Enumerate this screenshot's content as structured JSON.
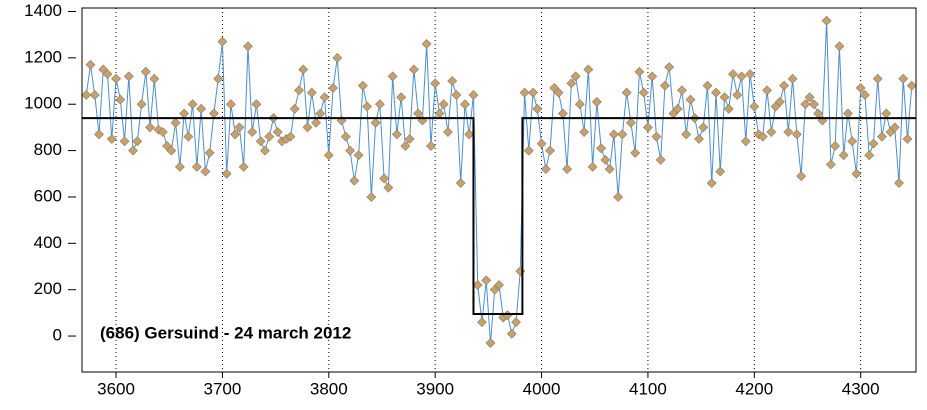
{
  "chart_data": {
    "type": "line",
    "annotation": "(686) Gersuind - 24 march 2012",
    "xlim": [
      3568,
      4352
    ],
    "ylim": [
      -155,
      1415
    ],
    "xticks": [
      3600,
      3700,
      3800,
      3900,
      4000,
      4100,
      4200,
      4300
    ],
    "yticks": [
      0,
      200,
      400,
      600,
      800,
      1000,
      1200,
      1400
    ],
    "grid": true,
    "series": [
      {
        "color": "#4a8fd0",
        "marker_color": "#c8a06a",
        "x": [
          3572,
          3576,
          3580,
          3584,
          3588,
          3592,
          3596,
          3600,
          3604,
          3608,
          3612,
          3616,
          3620,
          3624,
          3628,
          3632,
          3636,
          3640,
          3644,
          3648,
          3652,
          3656,
          3660,
          3664,
          3668,
          3672,
          3676,
          3680,
          3684,
          3688,
          3692,
          3696,
          3700,
          3704,
          3708,
          3712,
          3716,
          3720,
          3724,
          3728,
          3732,
          3736,
          3740,
          3744,
          3748,
          3752,
          3756,
          3760,
          3764,
          3768,
          3772,
          3776,
          3780,
          3784,
          3788,
          3792,
          3796,
          3800,
          3804,
          3808,
          3812,
          3816,
          3820,
          3824,
          3828,
          3832,
          3836,
          3840,
          3844,
          3848,
          3852,
          3856,
          3860,
          3864,
          3868,
          3872,
          3876,
          3880,
          3884,
          3888,
          3892,
          3896,
          3900,
          3904,
          3908,
          3912,
          3916,
          3920,
          3924,
          3928,
          3932,
          3936,
          3940,
          3944,
          3948,
          3952,
          3956,
          3960,
          3964,
          3968,
          3972,
          3976,
          3980,
          3984,
          3988,
          3992,
          3996,
          4000,
          4004,
          4008,
          4012,
          4016,
          4020,
          4024,
          4028,
          4032,
          4036,
          4040,
          4044,
          4048,
          4052,
          4056,
          4060,
          4064,
          4068,
          4072,
          4076,
          4080,
          4084,
          4088,
          4092,
          4096,
          4100,
          4104,
          4108,
          4112,
          4116,
          4120,
          4124,
          4128,
          4132,
          4136,
          4140,
          4144,
          4148,
          4152,
          4156,
          4160,
          4164,
          4168,
          4172,
          4176,
          4180,
          4184,
          4188,
          4192,
          4196,
          4200,
          4204,
          4208,
          4212,
          4216,
          4220,
          4224,
          4228,
          4232,
          4236,
          4240,
          4244,
          4248,
          4252,
          4256,
          4260,
          4264,
          4268,
          4272,
          4276,
          4280,
          4284,
          4288,
          4292,
          4296,
          4300,
          4304,
          4308,
          4312,
          4316,
          4320,
          4324,
          4328,
          4332,
          4336,
          4340,
          4344,
          4348
        ],
        "values": [
          1040,
          1170,
          1040,
          870,
          1150,
          1130,
          850,
          1110,
          1020,
          840,
          1120,
          800,
          840,
          1000,
          1140,
          900,
          1110,
          890,
          880,
          820,
          800,
          920,
          730,
          960,
          860,
          1000,
          730,
          980,
          710,
          790,
          960,
          1110,
          1270,
          700,
          1000,
          870,
          900,
          730,
          1250,
          880,
          1000,
          840,
          800,
          860,
          940,
          880,
          840,
          850,
          860,
          980,
          1060,
          1150,
          900,
          1050,
          920,
          960,
          1030,
          780,
          1070,
          1200,
          930,
          860,
          800,
          670,
          780,
          1080,
          990,
          600,
          920,
          1000,
          680,
          640,
          1120,
          870,
          1030,
          820,
          850,
          1150,
          960,
          930,
          1260,
          820,
          1090,
          960,
          1000,
          880,
          1100,
          1040,
          660,
          1000,
          870,
          1040,
          220,
          60,
          240,
          -30,
          200,
          220,
          80,
          90,
          10,
          60,
          280,
          1050,
          800,
          1050,
          980,
          830,
          720,
          800,
          1070,
          1050,
          960,
          720,
          1090,
          1120,
          1000,
          880,
          1150,
          730,
          1010,
          810,
          760,
          720,
          870,
          600,
          870,
          1050,
          920,
          790,
          1140,
          1050,
          900,
          1120,
          860,
          760,
          1080,
          1160,
          960,
          980,
          1060,
          870,
          1020,
          940,
          850,
          900,
          1080,
          660,
          1050,
          710,
          1030,
          980,
          1130,
          1040,
          1120,
          840,
          1130,
          990,
          870,
          860,
          1060,
          880,
          990,
          1010,
          1080,
          880,
          1110,
          870,
          690,
          1000,
          1030,
          1000,
          960,
          930,
          1360,
          740,
          820,
          1250,
          780,
          960,
          840,
          700,
          1070,
          1040,
          780,
          830,
          1110,
          860,
          960,
          880,
          900,
          660,
          1110,
          850,
          1080
        ]
      },
      {
        "color": "#000000",
        "x": [
          3568,
          3936,
          3936,
          3982,
          3982,
          4352
        ],
        "values": [
          940,
          940,
          95,
          95,
          940,
          940
        ]
      }
    ]
  }
}
